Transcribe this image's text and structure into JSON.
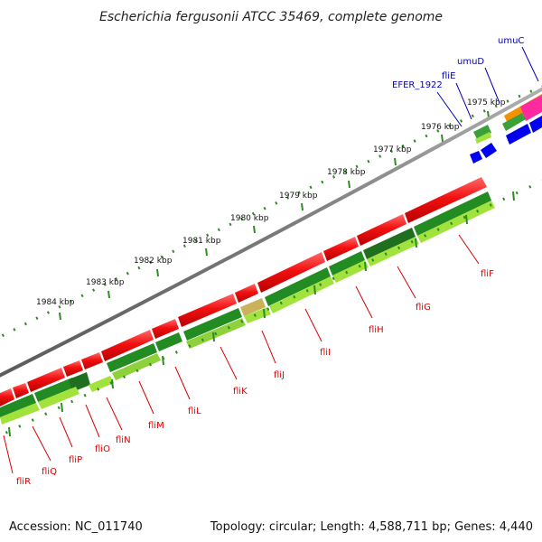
{
  "header": {
    "title": "Escherichia fergusonii ATCC 35469, complete genome"
  },
  "footer": {
    "accession": "Accession: NC_011740",
    "summary": "Topology: circular; Length: 4,588,711 bp; Genes: 4,440"
  },
  "ruler": {
    "ticks": [
      "1984 kbp",
      "1983 kbp",
      "1982 kbp",
      "1981 kbp",
      "1980 kbp",
      "1979 kbp",
      "1978 kbp",
      "1977 kbp",
      "1976 kbp",
      "1975 kbp"
    ]
  },
  "genes": {
    "reverse": [
      "fliR",
      "fliQ",
      "fliP",
      "fliO",
      "fliN",
      "fliM",
      "fliL",
      "fliK",
      "fliJ",
      "fliI",
      "fliH",
      "fliG",
      "fliF"
    ],
    "forward": [
      "EFER_1922",
      "fliE",
      "umuD",
      "umuC"
    ]
  },
  "colors": {
    "backbone": "#8c8c8c",
    "cds": "#ee0000",
    "gene_dark": "#228b22",
    "gene_light": "#a2e23c",
    "ruler": "#2e8b22",
    "label_reverse": "#dd0000",
    "label_forward": "#0000bb",
    "forward_blue": "#0000ee",
    "forward_pink": "#ff2aa0",
    "forward_orange": "#f39200"
  }
}
